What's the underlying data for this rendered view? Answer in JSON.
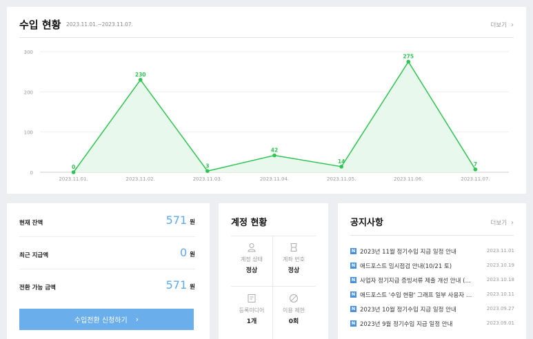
{
  "revenue": {
    "title": "수입 현황",
    "date_range": "2023.11.01.~2023.11.07.",
    "more_label": "더보기"
  },
  "chart_data": {
    "type": "area",
    "x": [
      "2023.11.01.",
      "2023.11.02.",
      "2023.11.03.",
      "2023.11.04.",
      "2023.11.05.",
      "2023.11.06.",
      "2023.11.07."
    ],
    "series": [
      {
        "values": [
          0,
          230,
          3,
          42,
          14,
          275,
          7
        ]
      }
    ],
    "data_labels": [
      "0",
      "230",
      "3",
      "42",
      "14",
      "275",
      "7"
    ],
    "y_ticks": [
      "0",
      "100",
      "200",
      "300"
    ],
    "ylim": [
      0,
      300
    ],
    "grid": true,
    "line_color": "#2ec452",
    "fill_color": "#e9f8ec"
  },
  "balance": {
    "rows": [
      {
        "label": "현재 잔액",
        "amount": "571",
        "unit": "원"
      },
      {
        "label": "최근 지급액",
        "amount": "0",
        "unit": "원"
      },
      {
        "label": "전환 가능 금액",
        "amount": "571",
        "unit": "원"
      }
    ],
    "button_label": "수입전환 신청하기"
  },
  "account": {
    "title": "계정 현황",
    "cells": [
      {
        "label": "계정 상태",
        "value": "정상",
        "icon": "user-icon"
      },
      {
        "label": "계좌 번호",
        "value": "정상",
        "icon": "card-icon"
      },
      {
        "label": "등록미디어",
        "value": "1개",
        "icon": "document-icon"
      },
      {
        "label": "이용 제한",
        "value": "0회",
        "icon": "ban-icon"
      }
    ]
  },
  "notice": {
    "title": "공지사항",
    "more_label": "더보기",
    "badge": "N",
    "items": [
      {
        "text": "2023년 11월 정기수입 지급 일정 안내",
        "date": "2023.11.01"
      },
      {
        "text": "애드포스트 임시점검 안내(10/21 토)",
        "date": "2023.10.19"
      },
      {
        "text": "사업자 정기지급 증빙서류 제출 개선 안내 (…",
        "date": "2023.10.18"
      },
      {
        "text": "애드포스트 '수입 현황' 그래프 일부 사용자 …",
        "date": "2023.10.11"
      },
      {
        "text": "2023년 10월 정기수입 지급 일정 안내",
        "date": "2023.09.27"
      },
      {
        "text": "2023년 9월 정기수입 지급 일정 안내",
        "date": "2023.09.01"
      }
    ]
  }
}
